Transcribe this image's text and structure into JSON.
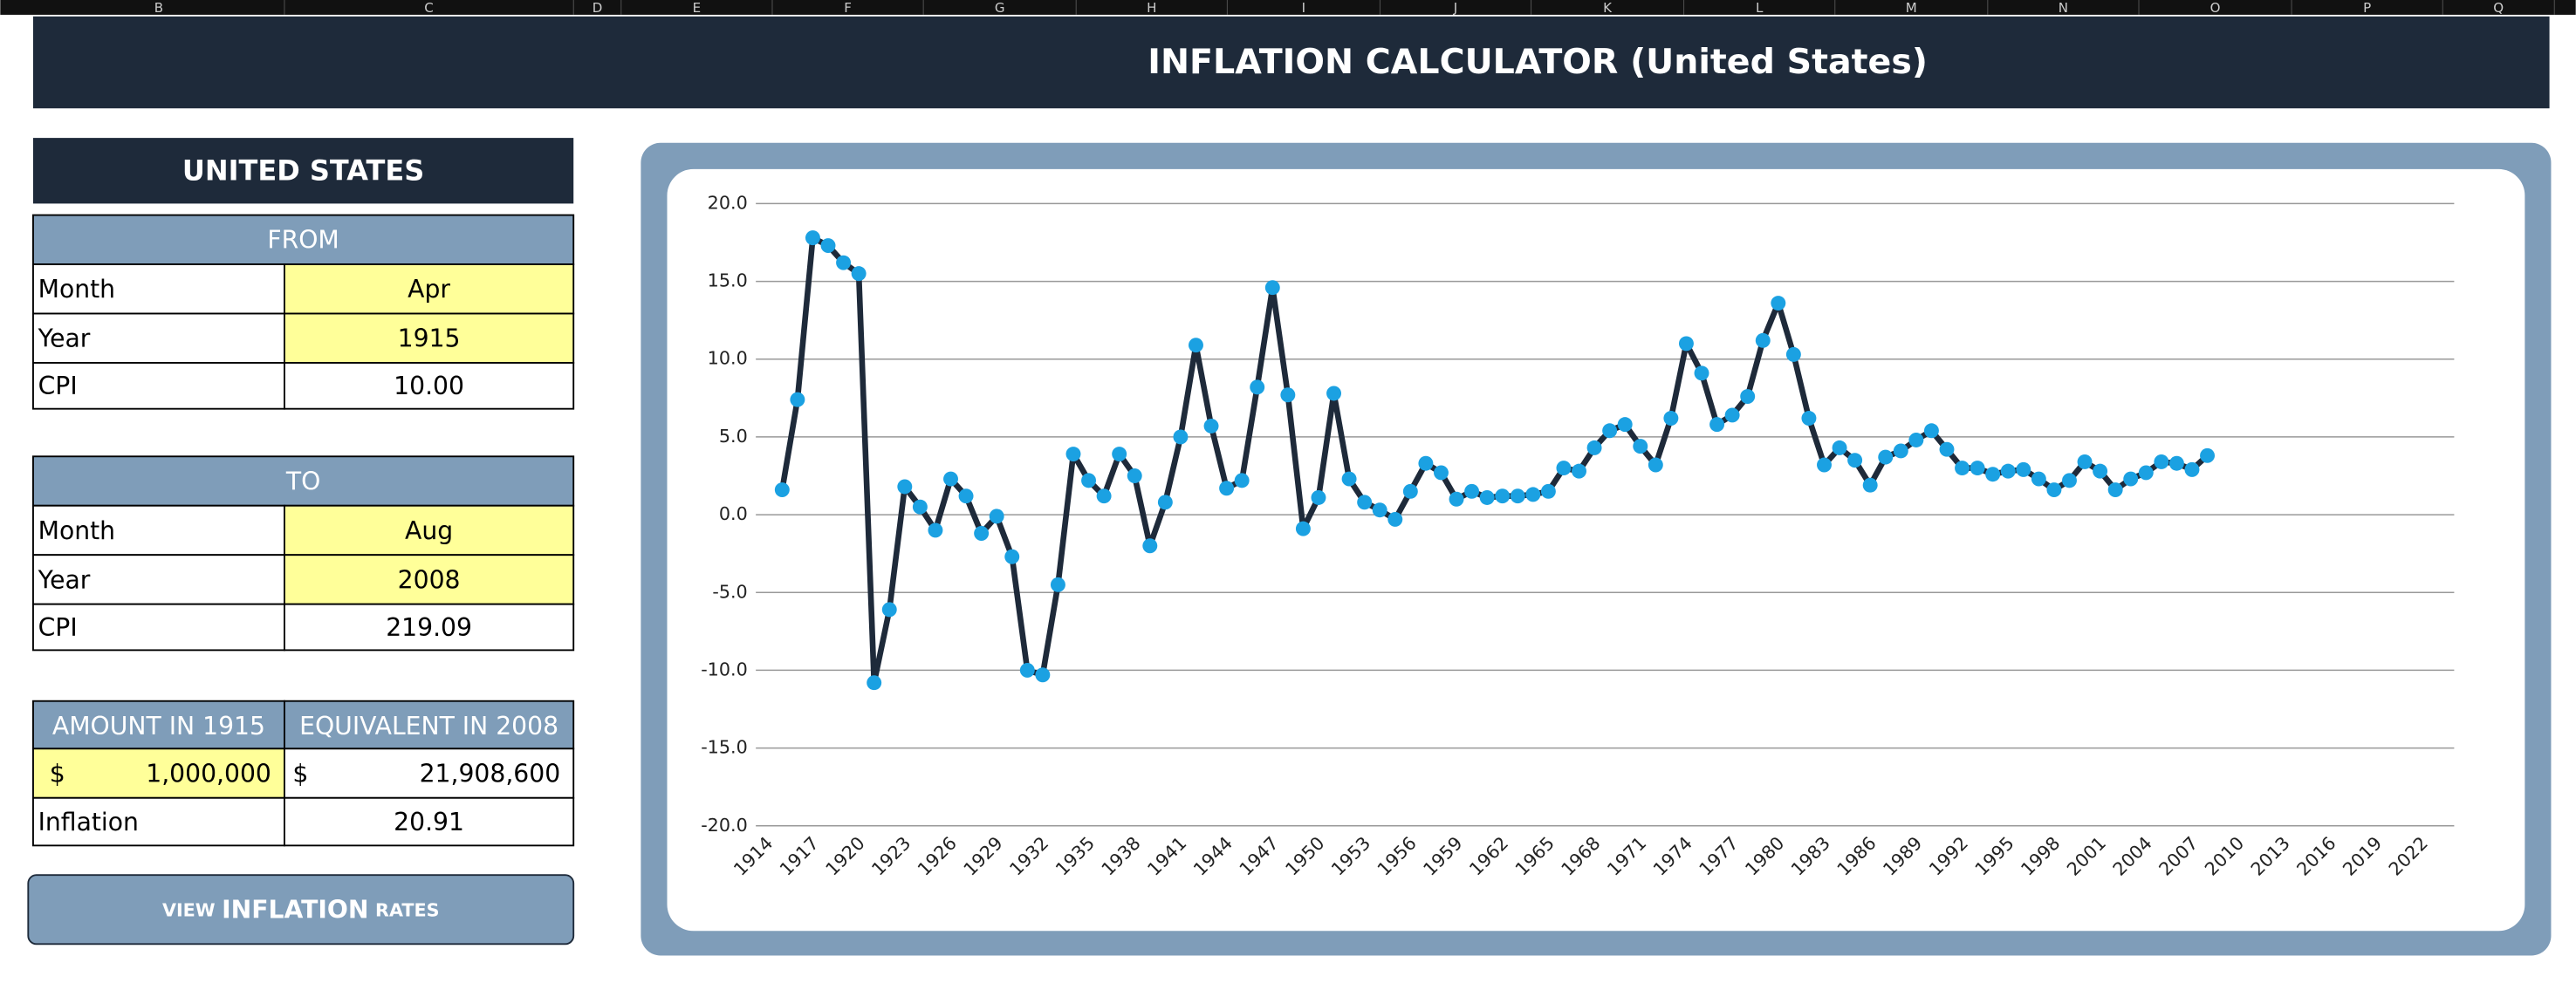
{
  "columns": [
    "B",
    "C",
    "D",
    "E",
    "F",
    "G",
    "H",
    "I",
    "J",
    "K",
    "L",
    "M",
    "N",
    "O",
    "P",
    "Q"
  ],
  "header": {
    "title": "INFLATION CALCULATOR (United States)"
  },
  "panel": {
    "title": "UNITED STATES",
    "from": {
      "heading": "FROM",
      "rows": [
        [
          "Month",
          "Apr"
        ],
        [
          "Year",
          "1915"
        ],
        [
          "CPI",
          "10.00"
        ]
      ]
    },
    "to": {
      "heading": "TO",
      "rows": [
        [
          "Month",
          "Aug"
        ],
        [
          "Year",
          "2008"
        ],
        [
          "CPI",
          "219.09"
        ]
      ]
    },
    "result": {
      "headings": [
        "AMOUNT IN 1915",
        "EQUIVALENT IN 2008"
      ],
      "amount": [
        "$",
        "1,000,000"
      ],
      "equivalent": [
        "$",
        "21,908,600"
      ],
      "inflation": [
        "Inflation",
        "20.91"
      ]
    },
    "button": [
      "VIEW",
      "INFLATION",
      "RATES"
    ]
  },
  "chart_data": {
    "type": "line",
    "categories": [
      1914,
      null,
      null,
      1917,
      null,
      null,
      1920,
      null,
      null,
      1923,
      null,
      null,
      1926,
      null,
      null,
      1929,
      null,
      null,
      1932,
      null,
      null,
      1935,
      null,
      null,
      1938,
      null,
      null,
      1941,
      null,
      null,
      1944,
      null,
      null,
      1947,
      null,
      null,
      1950,
      null,
      null,
      1953,
      null,
      null,
      1956,
      null,
      null,
      1959,
      null,
      null,
      1962,
      null,
      null,
      1965,
      null,
      null,
      1968,
      null,
      null,
      1971,
      null,
      null,
      1974,
      null,
      null,
      1977,
      null,
      null,
      1980,
      null,
      null,
      1983,
      null,
      null,
      1986,
      null,
      null,
      1989,
      null,
      null,
      1992,
      null,
      null,
      1995,
      null,
      null,
      1998,
      null,
      null,
      2001,
      null,
      null,
      2004,
      null,
      null,
      2007,
      null,
      null,
      2010,
      null,
      null,
      2013,
      null,
      null,
      2016,
      null,
      null,
      2019,
      null,
      null,
      2022
    ],
    "series": [
      {
        "color": "#1e2a3a",
        "marker_color": "#1ba1e2",
        "values": [
          null,
          1.6,
          7.4,
          17.8,
          17.3,
          16.2,
          15.5,
          -10.8,
          -6.1,
          1.8,
          0.5,
          -1.0,
          2.3,
          1.2,
          -1.2,
          -0.1,
          -2.7,
          -10.0,
          -10.3,
          -4.5,
          3.9,
          2.2,
          1.2,
          3.9,
          2.5,
          -2.0,
          0.8,
          5.0,
          10.9,
          5.7,
          1.7,
          2.2,
          8.2,
          14.6,
          7.7,
          -0.9,
          1.1,
          7.8,
          2.3,
          0.8,
          0.3,
          -0.3,
          1.5,
          3.3,
          2.7,
          1.0,
          1.5,
          1.1,
          1.2,
          1.2,
          1.3,
          1.5,
          3.0,
          2.8,
          4.3,
          5.4,
          5.8,
          4.4,
          3.2,
          6.2,
          11.0,
          9.1,
          5.8,
          6.4,
          7.6,
          11.2,
          13.6,
          10.3,
          6.2,
          3.2,
          4.3,
          3.5,
          1.9,
          3.7,
          4.1,
          4.8,
          5.4,
          4.2,
          3.0,
          3.0,
          2.6,
          2.8,
          2.9,
          2.3,
          1.6,
          2.2,
          3.4,
          2.8,
          1.6,
          2.3,
          2.7,
          3.4,
          3.3,
          2.9,
          3.8,
          null,
          null,
          null,
          null,
          null,
          null,
          null,
          null,
          null,
          null,
          null,
          null,
          null,
          null
        ]
      }
    ],
    "ylim": [
      -20,
      20
    ],
    "yticks": [
      {
        "value": -20,
        "label": "-20.0"
      },
      {
        "value": -15,
        "label": "-15.0"
      },
      {
        "value": -10,
        "label": "-10.0"
      },
      {
        "value": -5,
        "label": "-5.0"
      },
      {
        "value": 0,
        "label": "0.0"
      },
      {
        "value": 5,
        "label": "5.0"
      },
      {
        "value": 10,
        "label": "10.0"
      },
      {
        "value": 15,
        "label": "15.0"
      },
      {
        "value": 20,
        "label": "20.0"
      }
    ],
    "grid": true
  }
}
